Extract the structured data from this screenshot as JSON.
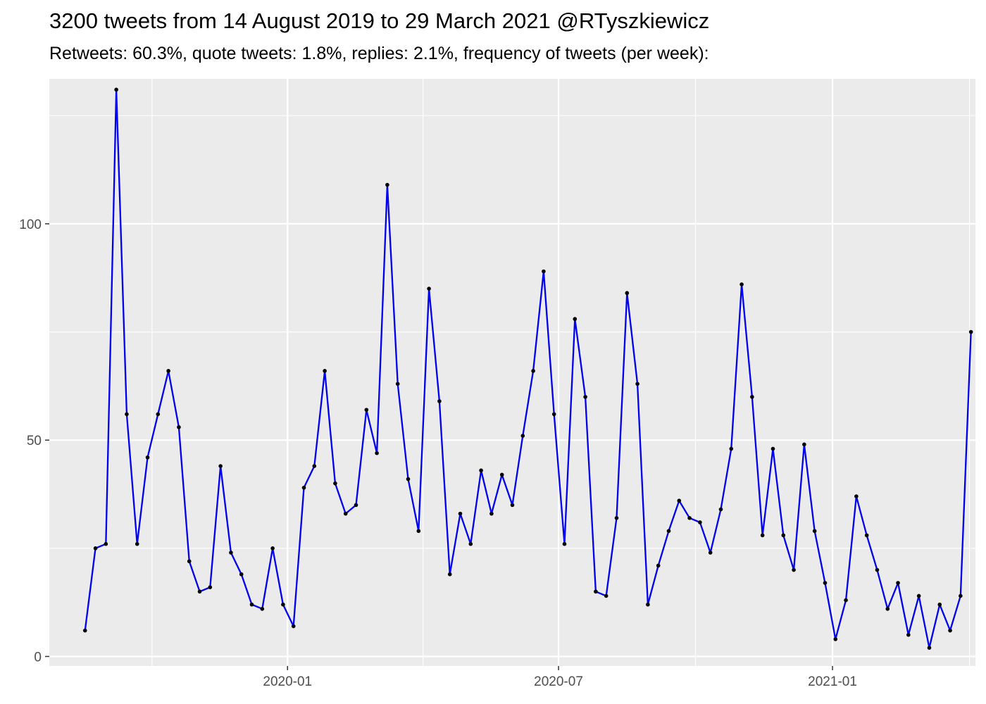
{
  "title": "3200 tweets from 14 August 2019 to 29 March 2021 @RTyszkiewicz",
  "subtitle": "Retweets: 60.3%, quote tweets: 1.8%, replies: 2.1%, frequency of tweets (per week):",
  "chart_data": {
    "type": "line",
    "title": "3200 tweets from 14 August 2019 to 29 March 2021 @RTyszkiewicz",
    "subtitle": "Retweets: 60.3%, quote tweets: 1.8%, replies: 2.1%, frequency of tweets (per week):",
    "xlabel": "",
    "ylabel": "",
    "x_start": "2019-08-18",
    "x_step_days": 7,
    "x_domain": [
      "2019-07-25",
      "2021-04-07"
    ],
    "ylim": [
      -2.2,
      133.5
    ],
    "y_ticks": [
      0,
      50,
      100
    ],
    "x_ticks": [
      {
        "date": "2020-01-01",
        "label": "2020-01"
      },
      {
        "date": "2020-07-01",
        "label": "2020-07"
      },
      {
        "date": "2021-01-01",
        "label": "2021-01"
      }
    ],
    "grid": true,
    "background": "#ebebeb",
    "line_color": "#0000ee",
    "point_color": "#000000",
    "values": [
      6,
      25,
      26,
      131,
      56,
      26,
      46,
      56,
      66,
      53,
      22,
      15,
      16,
      44,
      24,
      19,
      12,
      11,
      25,
      12,
      7,
      39,
      44,
      66,
      40,
      33,
      35,
      57,
      47,
      109,
      63,
      41,
      29,
      85,
      59,
      19,
      33,
      26,
      43,
      33,
      42,
      35,
      51,
      66,
      89,
      56,
      26,
      78,
      60,
      15,
      14,
      32,
      84,
      63,
      12,
      21,
      29,
      36,
      32,
      31,
      24,
      34,
      48,
      86,
      60,
      28,
      48,
      28,
      20,
      49,
      29,
      17,
      4,
      13,
      37,
      28,
      20,
      11,
      17,
      5,
      14,
      2,
      12,
      6,
      14,
      75
    ]
  }
}
